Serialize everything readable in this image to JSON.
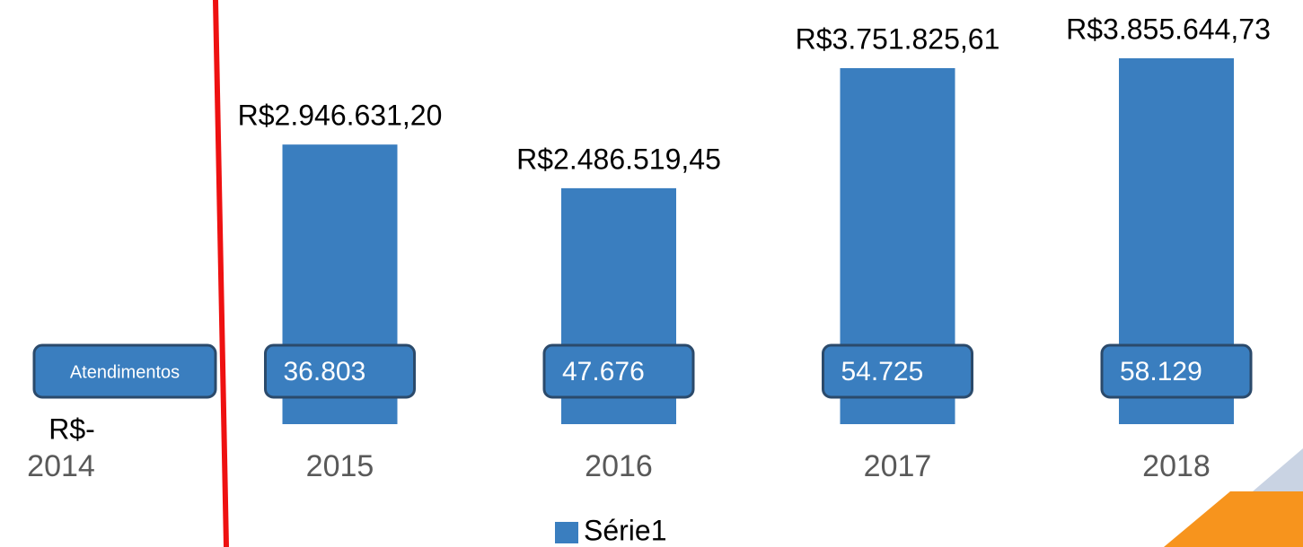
{
  "chart_data": {
    "type": "bar",
    "categories": [
      "2014",
      "2015",
      "2016",
      "2017",
      "2018"
    ],
    "series": [
      {
        "name": "Série1",
        "color": "#3a7ebf",
        "values": [
          0,
          2946631.2,
          2486519.45,
          3751825.61,
          3855644.73
        ],
        "value_labels": [
          "R$-",
          "R$2.946.631,20",
          "R$2.486.519,45",
          "R$3.751.825,61",
          "R$3.855.644,73"
        ]
      }
    ],
    "annotations": [
      "Atendimentos",
      "36.803",
      "47.676",
      "54.725",
      "58.129"
    ],
    "legend": "bottom"
  }
}
